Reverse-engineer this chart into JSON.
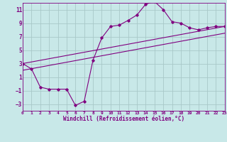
{
  "bg_color": "#c8e8e8",
  "grid_color": "#a8c8c8",
  "line_color": "#800080",
  "xlabel": "Windchill (Refroidissement éolien,°C)",
  "xlim": [
    0,
    23
  ],
  "ylim": [
    -4,
    12
  ],
  "yticks": [
    -3,
    -1,
    1,
    3,
    5,
    7,
    9,
    11
  ],
  "xticks": [
    0,
    1,
    2,
    3,
    4,
    5,
    6,
    7,
    8,
    9,
    10,
    11,
    12,
    13,
    14,
    15,
    16,
    17,
    18,
    19,
    20,
    21,
    22,
    23
  ],
  "curve1_x": [
    0,
    1,
    2,
    3,
    4,
    5,
    6,
    7,
    8,
    9,
    10,
    11,
    12,
    13,
    14,
    15,
    16,
    17,
    18,
    19,
    20,
    21,
    22,
    23
  ],
  "curve1_y": [
    3.0,
    2.2,
    -0.5,
    -0.8,
    -0.8,
    -0.8,
    -3.2,
    -2.6,
    3.5,
    6.8,
    8.5,
    8.7,
    9.4,
    10.2,
    11.8,
    12.2,
    11.0,
    9.2,
    9.0,
    8.3,
    8.0,
    8.3,
    8.5,
    8.5
  ],
  "line1_x": [
    0,
    23
  ],
  "line1_y": [
    3.0,
    8.5
  ],
  "line2_x": [
    0,
    23
  ],
  "line2_y": [
    2.0,
    7.5
  ]
}
